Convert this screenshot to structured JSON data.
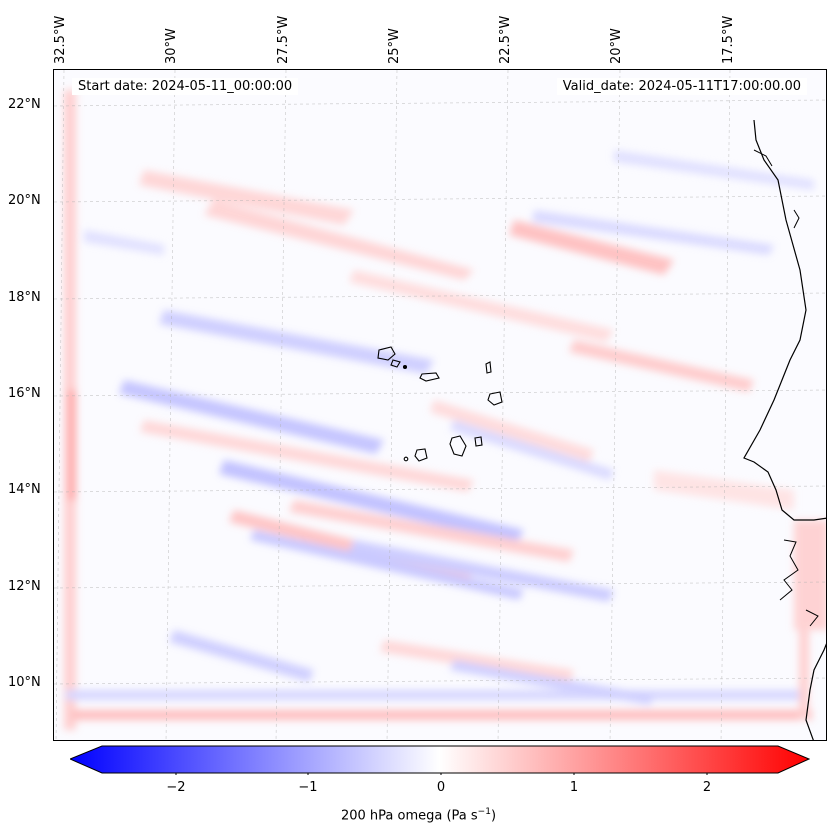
{
  "header": {
    "start_date": "Start date: 2024-05-11_00:00:00",
    "valid_date": "Valid_date: 2024-05-11T17:00:00.00"
  },
  "longitude_labels": [
    "32.5°W",
    "30°W",
    "27.5°W",
    "25°W",
    "22.5°W",
    "20°W",
    "17.5°W"
  ],
  "latitude_labels": [
    "22°N",
    "20°N",
    "18°N",
    "16°N",
    "14°N",
    "12°N",
    "10°N"
  ],
  "colorbar": {
    "tick_labels": [
      "−2",
      "−1",
      "0",
      "1",
      "2"
    ],
    "title": "200 hPa omega (Pa s",
    "title_sup": "−1",
    "title_end": ")",
    "min_color": "#0000ff",
    "mid_color": "#ffffff",
    "max_color": "#ff0000"
  },
  "map": {
    "field": "200 hPa omega",
    "projection_grid": "dashed",
    "coastline_color": "#000000"
  }
}
